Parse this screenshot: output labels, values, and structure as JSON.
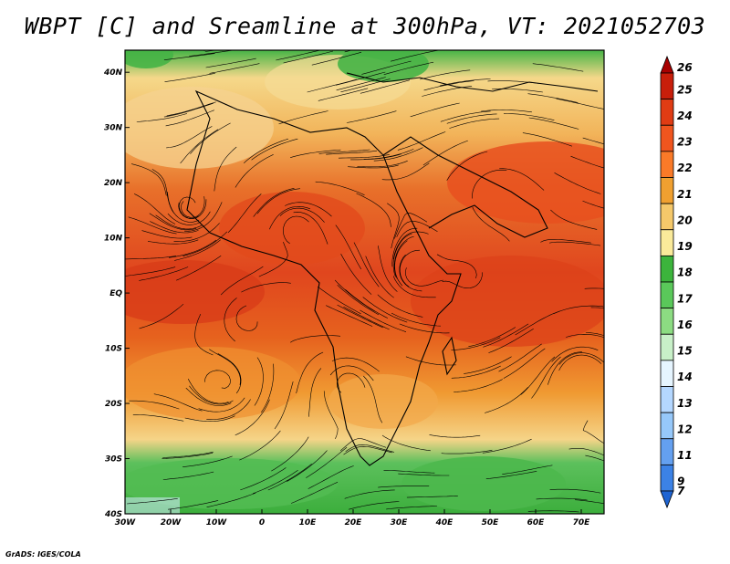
{
  "title": "WBPT [C] and Sreamline at 300hPa, VT: 2021052703",
  "credit": "GrADS: IGES/COLA",
  "map": {
    "lon_ticks": [
      "30W",
      "20W",
      "10W",
      "0",
      "10E",
      "20E",
      "30E",
      "40E",
      "50E",
      "60E",
      "70E"
    ],
    "lat_ticks": [
      "40N",
      "30N",
      "20N",
      "10N",
      "EQ",
      "10S",
      "20S",
      "30S",
      "40S"
    ],
    "lon_range": [
      -30,
      75
    ],
    "lat_range": [
      -40,
      44
    ]
  },
  "colorbar": {
    "labels": [
      "26",
      "25",
      "24",
      "23",
      "22",
      "21",
      "20",
      "19",
      "18",
      "17",
      "16",
      "15",
      "14",
      "13",
      "12",
      "11",
      "9",
      "7"
    ],
    "colors": [
      "#a80000",
      "#c81e0a",
      "#e03c14",
      "#f0551e",
      "#fa7a28",
      "#f0a030",
      "#f5c86a",
      "#faea9a",
      "#3cb43c",
      "#5ac85a",
      "#8cdc82",
      "#c8f0c8",
      "#e6f5ff",
      "#b4d7ff",
      "#96c8fa",
      "#64a0f0",
      "#3c82e6",
      "#1e64d2"
    ]
  }
}
